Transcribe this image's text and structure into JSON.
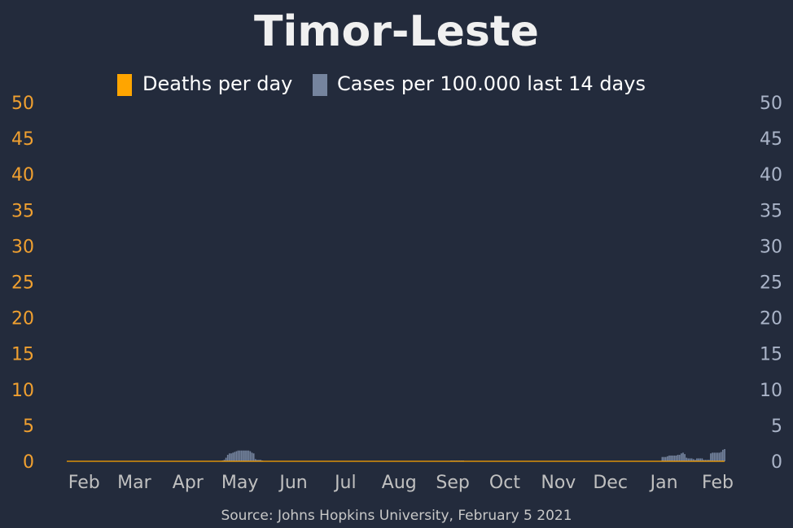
{
  "colors": {
    "background": "#232b3c",
    "title": "#f0f0f0",
    "deaths": "#ffa500",
    "cases": "#75849e",
    "left_axis": "#f0a030",
    "right_axis": "#aab4c8",
    "x_axis": "#c0c0c0",
    "source": "#c8c8c8"
  },
  "chart_data": {
    "type": "bar",
    "title": "Timor-Leste",
    "legend_position": "top-center",
    "grid": false,
    "series": [
      {
        "name": "Deaths per day",
        "axis": "left",
        "values_note": "all zero",
        "points": [
          [
            "2020-01-22",
            0
          ],
          [
            "2021-02-05",
            0
          ]
        ]
      },
      {
        "name": "Cases per 100.000 last 14 days",
        "axis": "right",
        "points": [
          [
            "2020-04-21",
            0.1
          ],
          [
            "2020-04-22",
            0.2
          ],
          [
            "2020-04-23",
            0.5
          ],
          [
            "2020-04-24",
            0.9
          ],
          [
            "2020-04-25",
            1.1
          ],
          [
            "2020-04-26",
            1.1
          ],
          [
            "2020-04-27",
            1.2
          ],
          [
            "2020-04-28",
            1.3
          ],
          [
            "2020-04-29",
            1.4
          ],
          [
            "2020-04-30",
            1.5
          ],
          [
            "2020-05-01",
            1.5
          ],
          [
            "2020-05-02",
            1.5
          ],
          [
            "2020-05-03",
            1.5
          ],
          [
            "2020-05-04",
            1.5
          ],
          [
            "2020-05-05",
            1.5
          ],
          [
            "2020-05-06",
            1.5
          ],
          [
            "2020-05-07",
            1.4
          ],
          [
            "2020-05-08",
            1.2
          ],
          [
            "2020-05-09",
            1.1
          ],
          [
            "2020-05-10",
            0.3
          ],
          [
            "2020-05-11",
            0.2
          ],
          [
            "2020-05-12",
            0.2
          ],
          [
            "2020-05-13",
            0.2
          ],
          [
            "2020-05-14",
            0.1
          ],
          [
            "2020-08-31",
            0.1
          ],
          [
            "2020-09-01",
            0.1
          ],
          [
            "2020-09-02",
            0.1
          ],
          [
            "2020-09-03",
            0.1
          ],
          [
            "2020-09-04",
            0.1
          ],
          [
            "2020-09-05",
            0.1
          ],
          [
            "2020-09-06",
            0.1
          ],
          [
            "2020-09-07",
            0.1
          ],
          [
            "2020-12-31",
            0.6
          ],
          [
            "2021-01-01",
            0.6
          ],
          [
            "2021-01-02",
            0.6
          ],
          [
            "2021-01-03",
            0.7
          ],
          [
            "2021-01-04",
            0.8
          ],
          [
            "2021-01-05",
            0.8
          ],
          [
            "2021-01-06",
            0.8
          ],
          [
            "2021-01-07",
            0.8
          ],
          [
            "2021-01-08",
            0.8
          ],
          [
            "2021-01-09",
            0.9
          ],
          [
            "2021-01-10",
            0.9
          ],
          [
            "2021-01-11",
            1.1
          ],
          [
            "2021-01-12",
            1.2
          ],
          [
            "2021-01-13",
            1.0
          ],
          [
            "2021-01-14",
            0.5
          ],
          [
            "2021-01-15",
            0.4
          ],
          [
            "2021-01-16",
            0.4
          ],
          [
            "2021-01-17",
            0.4
          ],
          [
            "2021-01-18",
            0.3
          ],
          [
            "2021-01-19",
            0.2
          ],
          [
            "2021-01-20",
            0.4
          ],
          [
            "2021-01-21",
            0.4
          ],
          [
            "2021-01-22",
            0.4
          ],
          [
            "2021-01-23",
            0.4
          ],
          [
            "2021-01-24",
            0.2
          ],
          [
            "2021-01-25",
            0.2
          ],
          [
            "2021-01-26",
            0.2
          ],
          [
            "2021-01-27",
            0.2
          ],
          [
            "2021-01-28",
            1.1
          ],
          [
            "2021-01-29",
            1.2
          ],
          [
            "2021-01-30",
            1.2
          ],
          [
            "2021-01-31",
            1.2
          ],
          [
            "2021-02-01",
            1.2
          ],
          [
            "2021-02-02",
            1.2
          ],
          [
            "2021-02-03",
            1.3
          ],
          [
            "2021-02-04",
            1.6
          ],
          [
            "2021-02-05",
            1.7
          ]
        ]
      }
    ],
    "x_range": [
      "2020-01-22",
      "2021-02-05"
    ],
    "x_ticks": [
      {
        "label": "Feb",
        "date": "2020-02-01"
      },
      {
        "label": "Mar",
        "date": "2020-03-01"
      },
      {
        "label": "Apr",
        "date": "2020-04-01"
      },
      {
        "label": "May",
        "date": "2020-05-01"
      },
      {
        "label": "Jun",
        "date": "2020-06-01"
      },
      {
        "label": "Jul",
        "date": "2020-07-01"
      },
      {
        "label": "Aug",
        "date": "2020-08-01"
      },
      {
        "label": "Sep",
        "date": "2020-09-01"
      },
      {
        "label": "Oct",
        "date": "2020-10-01"
      },
      {
        "label": "Nov",
        "date": "2020-11-01"
      },
      {
        "label": "Dec",
        "date": "2020-12-01"
      },
      {
        "label": "Jan",
        "date": "2021-01-01"
      },
      {
        "label": "Feb",
        "date": "2021-02-01"
      }
    ],
    "y_left": {
      "ylim": [
        0,
        50
      ],
      "ticks": [
        0,
        5,
        10,
        15,
        20,
        25,
        30,
        35,
        40,
        45,
        50
      ]
    },
    "y_right": {
      "ylim": [
        0,
        50
      ],
      "ticks": [
        0,
        5,
        10,
        15,
        20,
        25,
        30,
        35,
        40,
        45,
        50
      ]
    },
    "source": "Source: Johns Hopkins University, February 5 2021"
  }
}
